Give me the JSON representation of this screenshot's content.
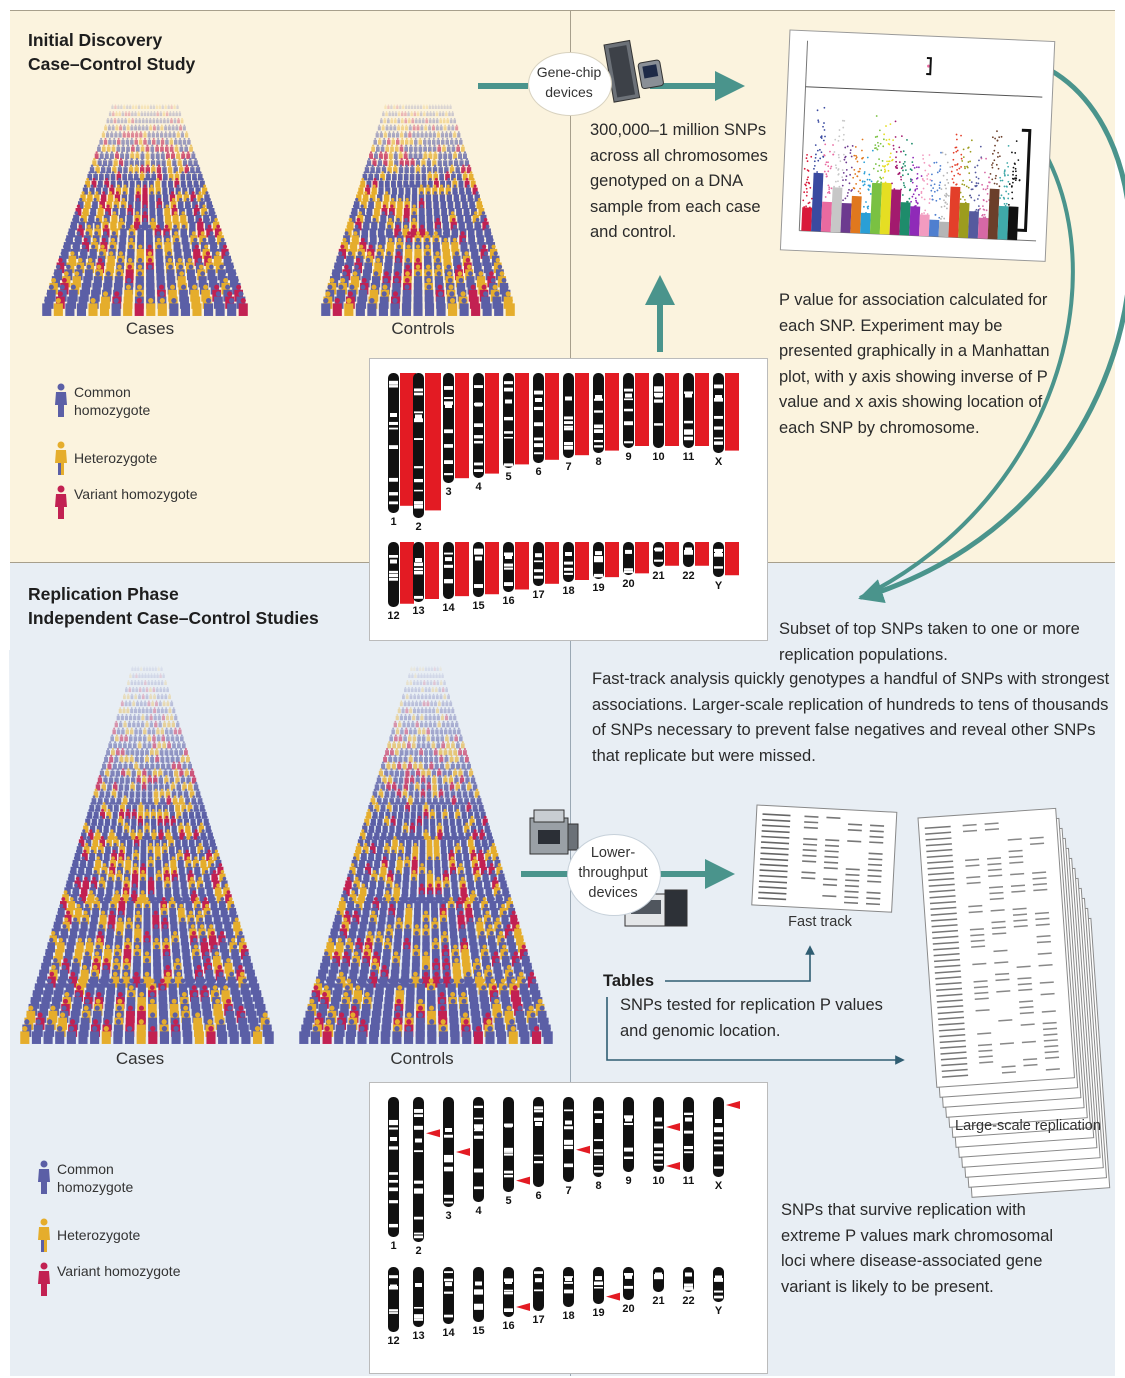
{
  "colors": {
    "discovery_bg": "#fbf3de",
    "replication_bg": "#e8eef4",
    "arrow_teal": "#4a948c",
    "arrow_navy": "#2f5d72",
    "common": "#5b5fa6",
    "hetero": "#e5ad2c",
    "variant": "#c22152",
    "chrom_red": "#e31b23"
  },
  "discovery": {
    "heading_line1": "Initial Discovery",
    "heading_line2": "Case–Control Study",
    "cases_label": "Cases",
    "controls_label": "Controls",
    "device_label": "Gene-chip devices",
    "genotype_text": "300,000–1 million SNPs across all chromosomes genotyped on a DNA sample from each case and control.",
    "pvalue_text": "P value for association calculated for each SNP. Experiment may be presented graphically in a Manhattan plot, with y axis showing inverse of P value and x axis showing location of each SNP by chromosome.",
    "legend": {
      "common": "Common homozygote",
      "hetero": "Heterozygote",
      "variant": "Variant homozygote"
    }
  },
  "replication": {
    "heading_line1": "Replication Phase",
    "heading_line2": "Independent Case–Control Studies",
    "cases_label": "Cases",
    "controls_label": "Controls",
    "subset_text": "Subset of top SNPs taken to one or more replication populations.",
    "fasttrack_text": "Fast-track analysis quickly genotypes a handful of SNPs with strongest associations. Larger-scale replication of hundreds to tens of thousands of SNPs necessary to prevent false negatives and reveal other SNPs that replicate but were missed.",
    "device_label": "Lower-throughput devices",
    "fast_track_label": "Fast track",
    "large_scale_label": "Large-scale replication",
    "tables_title": "Tables",
    "tables_text": "SNPs tested for replication P values and genomic location.",
    "survive_text": "SNPs that survive replication with extreme P values mark chromosomal loci where disease-associated gene variant is likely to be present.",
    "legend": {
      "common": "Common homozygote",
      "hetero": "Heterozygote",
      "variant": "Variant homozygote"
    }
  },
  "chromosome_labels_top": [
    "1",
    "2",
    "3",
    "4",
    "5",
    "6",
    "7",
    "8",
    "9",
    "10",
    "11",
    "X"
  ],
  "chromosome_labels_bottom": [
    "12",
    "13",
    "14",
    "15",
    "16",
    "17",
    "18",
    "19",
    "20",
    "21",
    "22",
    "Y"
  ]
}
